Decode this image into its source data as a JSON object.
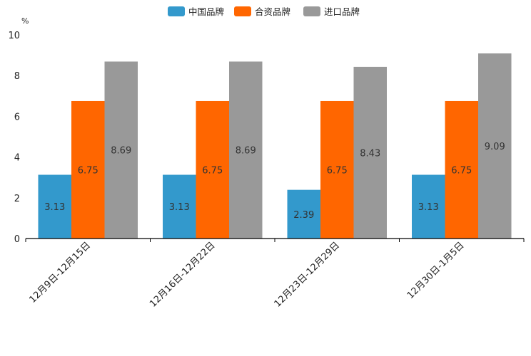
{
  "chart_data": {
    "type": "bar",
    "title": "",
    "unit": "%",
    "xlabel": "",
    "ylabel": "",
    "ylim": [
      0,
      10
    ],
    "yticks": [
      0,
      2,
      4,
      6,
      8,
      10
    ],
    "categories": [
      "12月9日-12月15日",
      "12月16日-12月22日",
      "12月23日-12月29日",
      "12月30日-1月5日"
    ],
    "series": [
      {
        "name": "中国品牌",
        "color": "#3399cc",
        "values": [
          3.13,
          3.13,
          2.39,
          3.13
        ]
      },
      {
        "name": "合资品牌",
        "color": "#ff6600",
        "values": [
          6.75,
          6.75,
          6.75,
          6.75
        ]
      },
      {
        "name": "进口品牌",
        "color": "#999999",
        "values": [
          8.69,
          8.69,
          8.43,
          9.09
        ]
      }
    ],
    "legend_position": "top-center",
    "grid": false,
    "data_labels": true
  }
}
